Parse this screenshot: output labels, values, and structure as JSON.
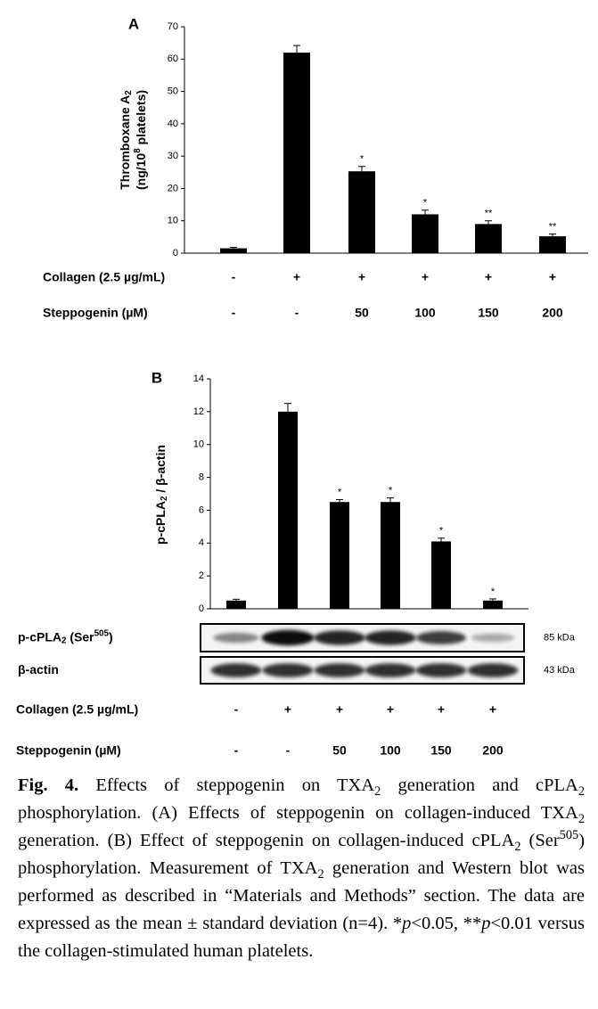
{
  "chart_data": [
    {
      "type": "bar",
      "panel": "A",
      "ylabel": [
        [
          {
            "text": "Thromboxane A"
          },
          {
            "text": "2",
            "sub": true
          }
        ],
        [
          {
            "text": "(ng/10"
          },
          {
            "text": "8",
            "sup": true
          },
          {
            "text": " platelets)"
          }
        ]
      ],
      "values": [
        1.5,
        62,
        25.3,
        12,
        9,
        5.2
      ],
      "errors": [
        0.3,
        2.2,
        1.5,
        1.3,
        1,
        0.7
      ],
      "annotations": [
        null,
        null,
        "*",
        "*",
        "**",
        "**"
      ],
      "color": "#000000",
      "ylim": [
        0,
        70
      ],
      "yticks": [
        0,
        10,
        20,
        30,
        40,
        50,
        60,
        70
      ],
      "conditions": [
        {
          "label": "Collagen (2.5 µg/mL)",
          "values": [
            "-",
            "+",
            "+",
            "+",
            "+",
            "+"
          ]
        },
        {
          "label": "Steppogenin (µM)",
          "values": [
            "-",
            "-",
            "50",
            "100",
            "150",
            "200"
          ]
        }
      ]
    },
    {
      "type": "bar",
      "panel": "B",
      "ylabel": [
        [
          {
            "text": "p-cPLA"
          },
          {
            "text": "2",
            "sub": true
          },
          {
            "text": " / β-actin"
          }
        ]
      ],
      "values": [
        0.5,
        12,
        6.5,
        6.5,
        4.1,
        0.5
      ],
      "errors": [
        0.08,
        0.5,
        0.15,
        0.25,
        0.2,
        0.1
      ],
      "annotations": [
        null,
        null,
        "*",
        "*",
        "*",
        "*"
      ],
      "color": "#000000",
      "ylim": [
        0,
        14
      ],
      "yticks": [
        0,
        2,
        4,
        6,
        8,
        10,
        12,
        14
      ],
      "blot": {
        "rows": [
          {
            "label": [
              {
                "text": "p-cPLA"
              },
              {
                "text": "2",
                "sub": true
              },
              {
                "text": " (Ser"
              },
              {
                "text": "505",
                "sup": true
              },
              {
                "text": ")"
              }
            ],
            "size": "85 kDa"
          },
          {
            "label": [
              {
                "text": "β-actin"
              }
            ],
            "size": "43 kDa"
          }
        ]
      },
      "conditions": [
        {
          "label": "Collagen (2.5 µg/mL)",
          "values": [
            "-",
            "+",
            "+",
            "+",
            "+",
            "+"
          ]
        },
        {
          "label": "Steppogenin (µM)",
          "values": [
            "-",
            "-",
            "50",
            "100",
            "150",
            "200"
          ]
        }
      ]
    }
  ],
  "caption": [
    {
      "text": "Fig. 4.",
      "bold": true
    },
    {
      "text": " Effects of steppogenin on TXA"
    },
    {
      "text": "2",
      "sub": true
    },
    {
      "text": " generation and cPLA"
    },
    {
      "text": "2",
      "sub": true
    },
    {
      "text": " phosphorylation. (A) Effects of steppogenin on collagen-induced TXA"
    },
    {
      "text": "2",
      "sub": true
    },
    {
      "text": " generation. (B) Effect of steppogenin on collagen-induced cPLA"
    },
    {
      "text": "2",
      "sub": true
    },
    {
      "text": " (Ser"
    },
    {
      "text": "505",
      "sup": true
    },
    {
      "text": ") phosphorylation. Measurement of TXA"
    },
    {
      "text": "2",
      "sub": true
    },
    {
      "text": " generation and Western blot was performed as described in “Materials and Methods” section. The data are expressed as the mean ± standard deviation (n=4). *"
    },
    {
      "text": "p",
      "italic": true
    },
    {
      "text": "<0.05, **"
    },
    {
      "text": "p",
      "italic": true
    },
    {
      "text": "<0.01 versus the collagen-stimulated human platelets."
    }
  ]
}
